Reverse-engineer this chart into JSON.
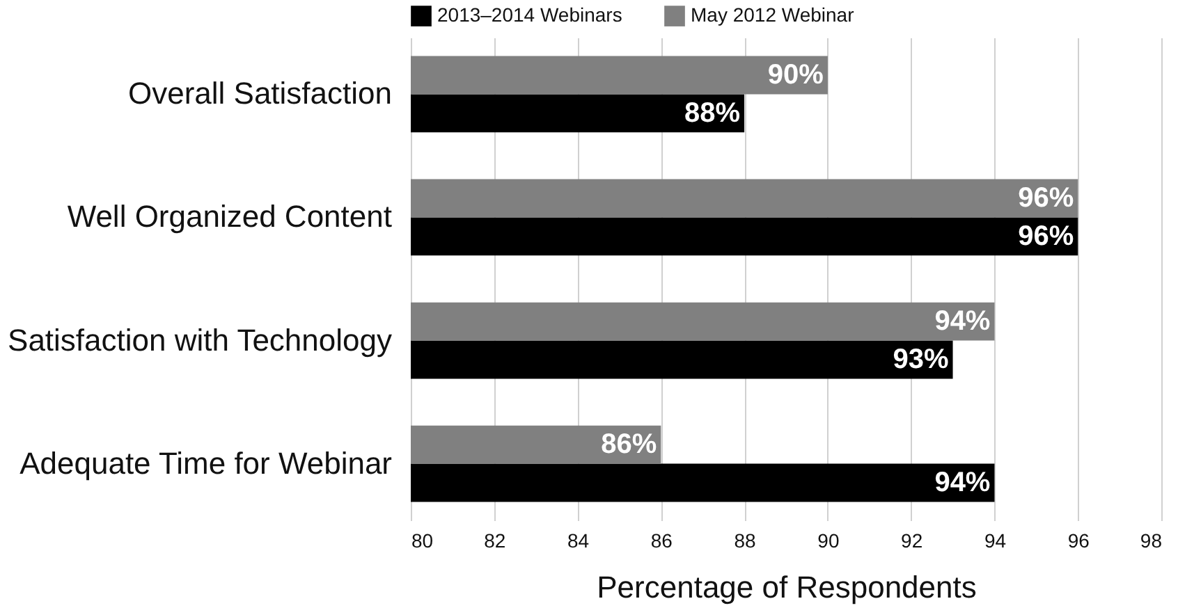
{
  "chart_data": {
    "type": "bar",
    "orientation": "horizontal",
    "xlabel": "Percentage of Respondents",
    "categories": [
      "Overall Satisfaction",
      "Well Organized Content",
      "Satisfaction with Technology",
      "Adequate Time for Webinar"
    ],
    "series": [
      {
        "name": "2013–2014 Webinars",
        "color": "#000000",
        "values": [
          88,
          96,
          93,
          94
        ],
        "value_labels": [
          "88%",
          "96%",
          "93%",
          "94%"
        ]
      },
      {
        "name": "May 2012 Webinar",
        "color": "#808080",
        "values": [
          90,
          96,
          94,
          86
        ],
        "value_labels": [
          "90%",
          "96%",
          "94%",
          "86%"
        ]
      }
    ],
    "xlim": [
      80,
      98
    ],
    "xticks": [
      80,
      82,
      84,
      86,
      88,
      90,
      92,
      94,
      96,
      98
    ],
    "grid": "x",
    "legend": "top"
  }
}
